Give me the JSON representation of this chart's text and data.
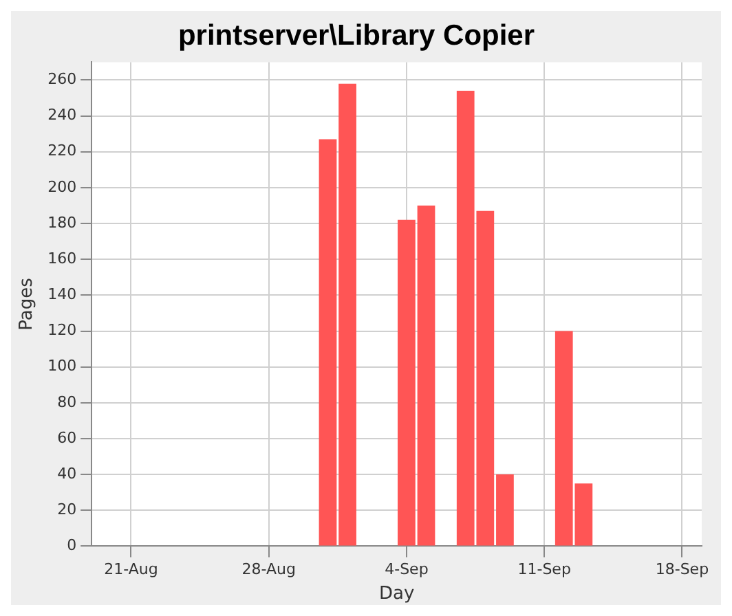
{
  "chart_data": {
    "type": "bar",
    "title": "printserver\\Library Copier",
    "xlabel": "Day",
    "ylabel": "Pages",
    "x": [
      "--08-31",
      "--09-01",
      "--09-04",
      "--09-05",
      "--09-07",
      "--09-08",
      "--09-09",
      "--09-12",
      "--09-13"
    ],
    "values": [
      227,
      258,
      182,
      190,
      254,
      187,
      40,
      120,
      35
    ],
    "color": "#ff5555",
    "xlim": [
      "--08-19",
      "--09-19"
    ],
    "xticks": [
      {
        "value": "--08-21",
        "label": "21-Aug"
      },
      {
        "value": "--08-28",
        "label": "28-Aug"
      },
      {
        "value": "--09-04",
        "label": "4-Sep"
      },
      {
        "value": "--09-11",
        "label": "11-Sep"
      },
      {
        "value": "--09-18",
        "label": "18-Sep"
      }
    ],
    "ylim": [
      0,
      270
    ],
    "yticks": [
      0,
      20,
      40,
      60,
      80,
      100,
      120,
      140,
      160,
      180,
      200,
      220,
      240,
      260
    ],
    "grid": true,
    "legend": false
  }
}
